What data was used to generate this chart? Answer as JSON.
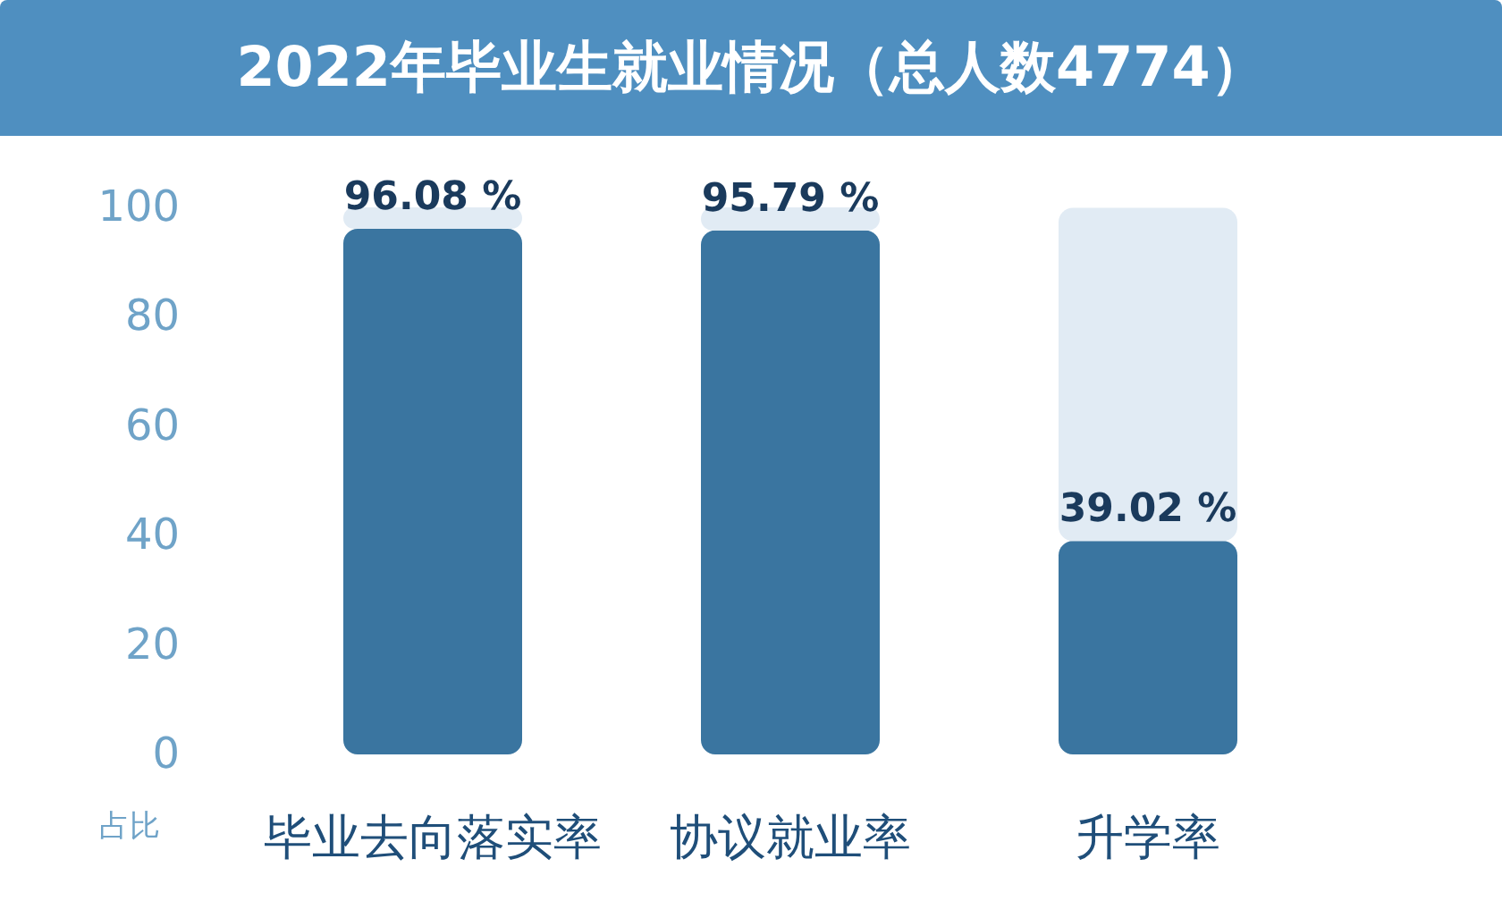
{
  "chart_data": {
    "type": "bar",
    "title": "2022年毕业生就业情况（总人数4774）",
    "ylabel": "占比",
    "categories": [
      "毕业去向落实率",
      "协议就业率",
      "升学率"
    ],
    "series": [
      {
        "color": "#3a75a0",
        "values": [
          96.08,
          95.79,
          39.02
        ],
        "value_labels": [
          "96.08 %",
          "95.79 %",
          "39.02 %"
        ]
      },
      {
        "color": "#e1ebf4",
        "values": [
          3.9,
          4.2,
          60.9
        ]
      }
    ],
    "stacked": true,
    "ylim": [
      0,
      100
    ],
    "yticks": [
      0,
      20,
      40,
      60,
      80,
      100
    ],
    "grid": false
  }
}
